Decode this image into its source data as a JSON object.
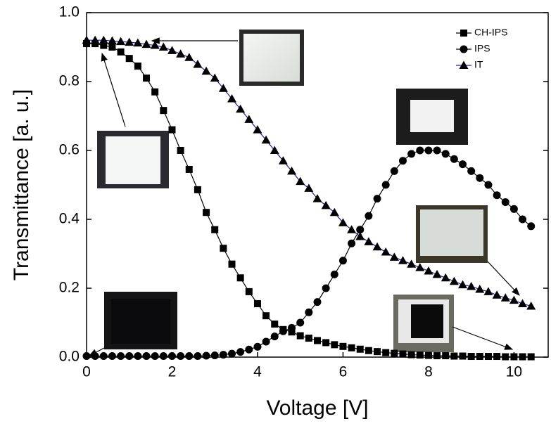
{
  "chart_data": {
    "type": "line",
    "x_label": "Voltage [V]",
    "y_label": "Transmittance [a. u.]",
    "xlim": [
      0,
      10.8
    ],
    "ylim": [
      0,
      1
    ],
    "xticks": [
      0,
      2,
      4,
      6,
      8,
      10
    ],
    "yticks": [
      {
        "value": 0,
        "label": "0.0"
      },
      {
        "value": 0.2,
        "label": "0.2"
      },
      {
        "value": 0.4,
        "label": "0.4"
      },
      {
        "value": 0.6,
        "label": "0.6"
      },
      {
        "value": 0.8,
        "label": "0.8"
      },
      {
        "value": 1,
        "label": "1.0"
      }
    ],
    "legend": "upper right",
    "x": [
      0,
      0.2,
      0.4,
      0.6,
      0.8,
      1,
      1.2,
      1.4,
      1.6,
      1.8,
      2,
      2.2,
      2.4,
      2.6,
      2.8,
      3,
      3.2,
      3.4,
      3.6,
      3.8,
      4,
      4.2,
      4.4,
      4.6,
      4.8,
      5,
      5.2,
      5.4,
      5.6,
      5.8,
      6,
      6.2,
      6.4,
      6.6,
      6.8,
      7,
      7.2,
      7.4,
      7.6,
      7.8,
      8,
      8.2,
      8.4,
      8.6,
      8.8,
      9,
      9.2,
      9.4,
      9.6,
      9.8,
      10,
      10.2,
      10.4
    ],
    "series": [
      {
        "name": "CH-IPS",
        "color": "#000000",
        "marker": "square",
        "values": [
          0.91,
          0.91,
          0.905,
          0.9,
          0.886,
          0.867,
          0.845,
          0.81,
          0.77,
          0.716,
          0.66,
          0.6,
          0.545,
          0.486,
          0.42,
          0.37,
          0.316,
          0.27,
          0.23,
          0.19,
          0.155,
          0.12,
          0.096,
          0.08,
          0.073,
          0.062,
          0.055,
          0.048,
          0.042,
          0.036,
          0.031,
          0.027,
          0.023,
          0.019,
          0.016,
          0.013,
          0.011,
          0.009,
          0.007,
          0.006,
          0.005,
          0.004,
          0.004,
          0.003,
          0.003,
          0.002,
          0.002,
          0.002,
          0.002,
          0.001,
          0.001,
          0.001,
          0.001
        ]
      },
      {
        "name": "IPS",
        "color": "#000000",
        "marker": "circle",
        "values": [
          0.003,
          0.003,
          0.003,
          0.003,
          0.003,
          0.003,
          0.003,
          0.003,
          0.003,
          0.003,
          0.003,
          0.003,
          0.003,
          0.003,
          0.004,
          0.005,
          0.007,
          0.01,
          0.015,
          0.022,
          0.03,
          0.045,
          0.06,
          0.075,
          0.085,
          0.1,
          0.13,
          0.16,
          0.2,
          0.24,
          0.28,
          0.33,
          0.37,
          0.41,
          0.46,
          0.5,
          0.54,
          0.57,
          0.59,
          0.6,
          0.6,
          0.6,
          0.59,
          0.575,
          0.56,
          0.54,
          0.52,
          0.5,
          0.47,
          0.45,
          0.43,
          0.4,
          0.38
        ]
      },
      {
        "name": "IT",
        "color": "#1a1ab0",
        "marker": "triangle",
        "values": [
          0.92,
          0.92,
          0.92,
          0.918,
          0.916,
          0.914,
          0.912,
          0.908,
          0.905,
          0.9,
          0.89,
          0.88,
          0.87,
          0.85,
          0.83,
          0.81,
          0.78,
          0.75,
          0.72,
          0.69,
          0.66,
          0.63,
          0.6,
          0.57,
          0.54,
          0.51,
          0.49,
          0.46,
          0.44,
          0.42,
          0.39,
          0.37,
          0.35,
          0.335,
          0.32,
          0.305,
          0.29,
          0.28,
          0.27,
          0.26,
          0.25,
          0.24,
          0.23,
          0.22,
          0.21,
          0.205,
          0.197,
          0.19,
          0.18,
          0.172,
          0.165,
          0.155,
          0.148
        ]
      }
    ]
  }
}
